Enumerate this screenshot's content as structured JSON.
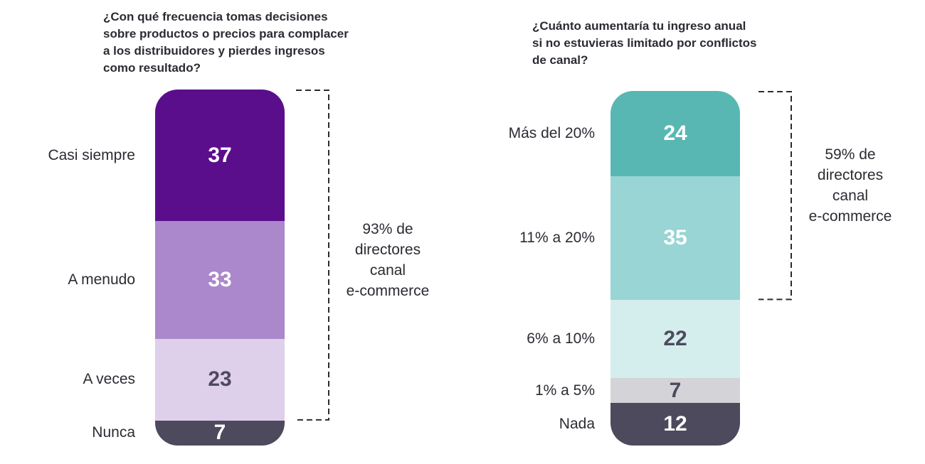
{
  "chart_data": [
    {
      "type": "bar",
      "stacked": true,
      "title": "¿Con qué frecuencia tomas decisiones\nsobre productos o precios para complacer\na los distribuidores y pierdes ingresos\ncomo resultado?",
      "categories": [
        "Casi siempre",
        "A menudo",
        "A veces",
        "Nunca"
      ],
      "values": [
        37,
        33,
        23,
        7
      ],
      "value_labels": [
        "37",
        "33",
        "23",
        "7"
      ],
      "colors": [
        "#5b0e8c",
        "#ab87cb",
        "#ded0ea",
        "#4e4a5d"
      ],
      "label_colors": [
        "#ffffff",
        "#ffffff",
        "#4e4a5d",
        "#ffffff"
      ],
      "bracket": {
        "covers": [
          0,
          1,
          2
        ],
        "text": "93% de\ndirectores\ncanal\ne-commerce"
      }
    },
    {
      "type": "bar",
      "stacked": true,
      "title": "¿Cuánto aumentaría tu ingreso anual\nsi no estuvieras limitado por conflictos\nde canal?",
      "categories": [
        "Más del 20%",
        "11% a 20%",
        "6% a 10%",
        "1% a 5%",
        "Nada"
      ],
      "values": [
        24,
        35,
        22,
        7,
        12
      ],
      "value_labels": [
        "24",
        "35",
        "22",
        "7",
        "12"
      ],
      "colors": [
        "#58b7b3",
        "#98d5d4",
        "#d4eeed",
        "#d4d3d8",
        "#4e4a5d"
      ],
      "label_colors": [
        "#ffffff",
        "#ffffff",
        "#4e4a5d",
        "#4e4a5d",
        "#ffffff"
      ],
      "bracket": {
        "covers": [
          0,
          1
        ],
        "text": "59% de\ndirectores\ncanal\ne-commerce"
      }
    }
  ]
}
